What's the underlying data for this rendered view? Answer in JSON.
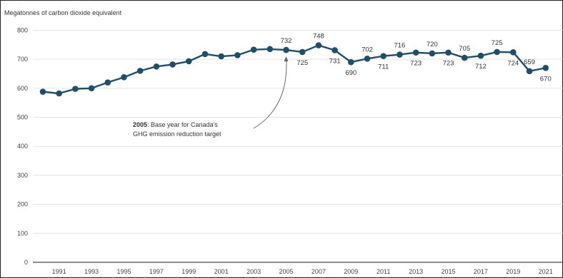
{
  "chart_data": {
    "type": "line",
    "ylabel": "Megatonnes of carbon dioxide equivalent",
    "ylim": [
      0,
      800
    ],
    "yticks": [
      0,
      100,
      200,
      300,
      400,
      500,
      600,
      700,
      800
    ],
    "xticks": [
      "1991",
      "1993",
      "1995",
      "1997",
      "1999",
      "2001",
      "2003",
      "2005",
      "2007",
      "2009",
      "2011",
      "2013",
      "2015",
      "2017",
      "2019",
      "2021"
    ],
    "grid": true,
    "color": "#1f4e6b",
    "series": [
      {
        "x": [
          1990,
          1991,
          1992,
          1993,
          1994,
          1995,
          1996,
          1997,
          1998,
          1999,
          2000,
          2001,
          2002,
          2003,
          2004,
          2005,
          2006,
          2007,
          2008,
          2009,
          2010,
          2011,
          2012,
          2013,
          2014,
          2015,
          2016,
          2017,
          2018,
          2019,
          2020,
          2021
        ],
        "values": [
          588,
          582,
          598,
          600,
          620,
          638,
          660,
          675,
          682,
          693,
          718,
          710,
          714,
          733,
          735,
          732,
          725,
          748,
          731,
          690,
          702,
          711,
          716,
          723,
          720,
          723,
          705,
          712,
          725,
          724,
          659,
          670
        ]
      }
    ],
    "data_labels": [
      {
        "year": 2005,
        "text": "732",
        "pos": "above"
      },
      {
        "year": 2006,
        "text": "725",
        "pos": "below"
      },
      {
        "year": 2007,
        "text": "748",
        "pos": "above"
      },
      {
        "year": 2008,
        "text": "731",
        "pos": "below"
      },
      {
        "year": 2009,
        "text": "690",
        "pos": "below"
      },
      {
        "year": 2010,
        "text": "702",
        "pos": "above"
      },
      {
        "year": 2011,
        "text": "711",
        "pos": "below"
      },
      {
        "year": 2012,
        "text": "716",
        "pos": "above"
      },
      {
        "year": 2013,
        "text": "723",
        "pos": "below"
      },
      {
        "year": 2014,
        "text": "720",
        "pos": "above"
      },
      {
        "year": 2015,
        "text": "723",
        "pos": "below"
      },
      {
        "year": 2016,
        "text": "705",
        "pos": "above"
      },
      {
        "year": 2017,
        "text": "712",
        "pos": "below"
      },
      {
        "year": 2018,
        "text": "725",
        "pos": "above"
      },
      {
        "year": 2019,
        "text": "724",
        "pos": "below"
      },
      {
        "year": 2020,
        "text": "659",
        "pos": "above"
      },
      {
        "year": 2021,
        "text": "670",
        "pos": "below"
      }
    ],
    "annotation": {
      "year": 2005,
      "bold": "2005",
      "line1_rest": ": Base year for Canada's",
      "line2": "GHG emission reduction target"
    }
  }
}
